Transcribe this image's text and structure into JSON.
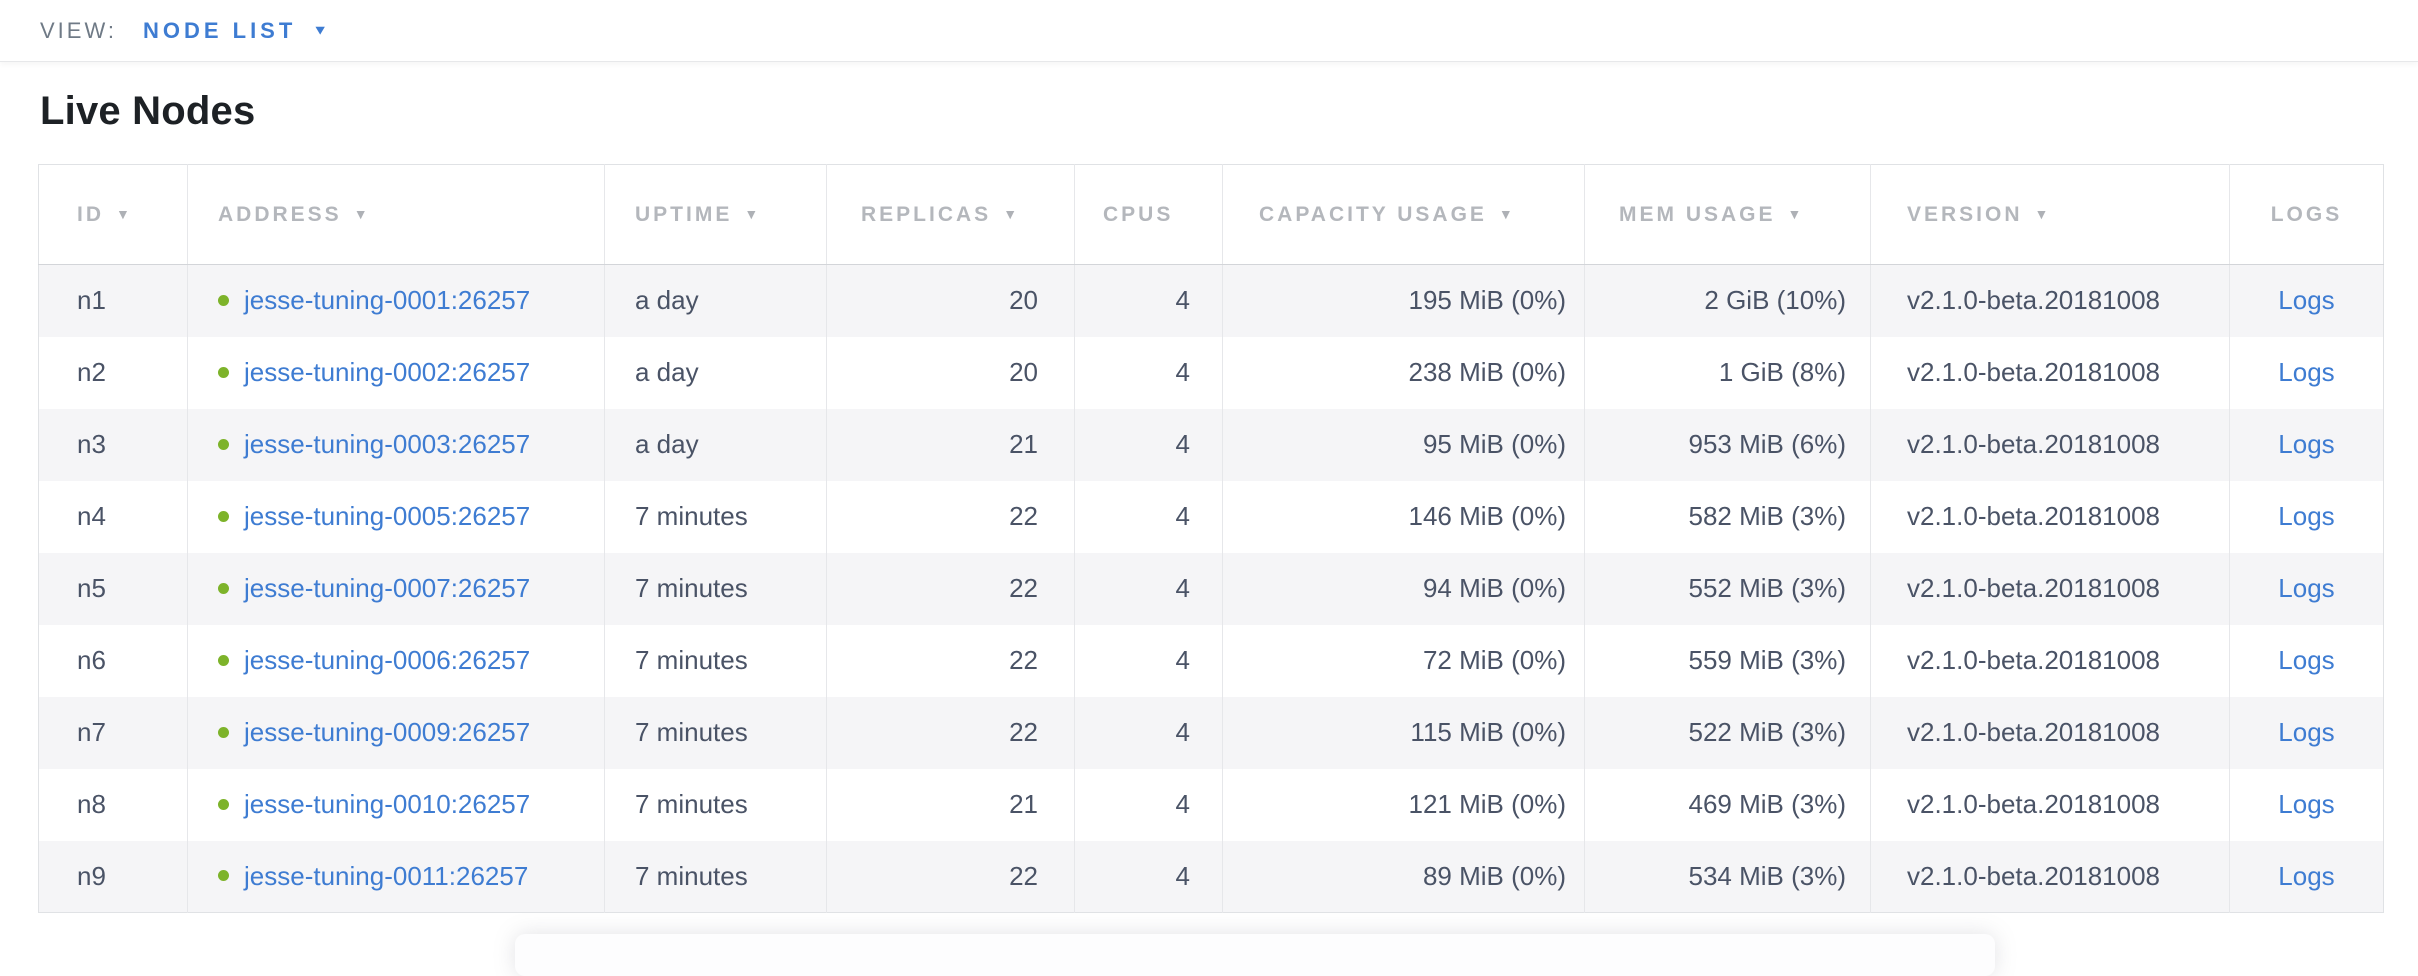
{
  "view_bar": {
    "label": "VIEW:",
    "selected": "NODE LIST"
  },
  "page": {
    "title": "Live Nodes"
  },
  "icons": {
    "sort_desc": "▼",
    "dropdown_caret": "▼",
    "live_dot": "●"
  },
  "colors": {
    "accent_blue": "#3e7cd2",
    "live_green": "#7db32a",
    "header_gray": "#b4b7bc",
    "row_text": "#4a5366",
    "row_alt_bg": "#f5f5f7"
  },
  "table": {
    "columns": [
      {
        "key": "id",
        "label": "ID",
        "sortable": true
      },
      {
        "key": "address",
        "label": "ADDRESS",
        "sortable": true
      },
      {
        "key": "uptime",
        "label": "UPTIME",
        "sortable": true
      },
      {
        "key": "replicas",
        "label": "REPLICAS",
        "sortable": true
      },
      {
        "key": "cpus",
        "label": "CPUS",
        "sortable": false
      },
      {
        "key": "capacity",
        "label": "CAPACITY USAGE",
        "sortable": true
      },
      {
        "key": "mem",
        "label": "MEM USAGE",
        "sortable": true
      },
      {
        "key": "version",
        "label": "VERSION",
        "sortable": true
      },
      {
        "key": "logs",
        "label": "LOGS",
        "sortable": false
      }
    ],
    "rows": [
      {
        "id": "n1",
        "status": "live",
        "address": "jesse-tuning-0001:26257",
        "uptime": "a day",
        "replicas": "20",
        "cpus": "4",
        "capacity": "195 MiB (0%)",
        "mem": "2 GiB (10%)",
        "version": "v2.1.0-beta.20181008",
        "logs": "Logs"
      },
      {
        "id": "n2",
        "status": "live",
        "address": "jesse-tuning-0002:26257",
        "uptime": "a day",
        "replicas": "20",
        "cpus": "4",
        "capacity": "238 MiB (0%)",
        "mem": "1 GiB (8%)",
        "version": "v2.1.0-beta.20181008",
        "logs": "Logs"
      },
      {
        "id": "n3",
        "status": "live",
        "address": "jesse-tuning-0003:26257",
        "uptime": "a day",
        "replicas": "21",
        "cpus": "4",
        "capacity": "95 MiB (0%)",
        "mem": "953 MiB (6%)",
        "version": "v2.1.0-beta.20181008",
        "logs": "Logs"
      },
      {
        "id": "n4",
        "status": "live",
        "address": "jesse-tuning-0005:26257",
        "uptime": "7 minutes",
        "replicas": "22",
        "cpus": "4",
        "capacity": "146 MiB (0%)",
        "mem": "582 MiB (3%)",
        "version": "v2.1.0-beta.20181008",
        "logs": "Logs"
      },
      {
        "id": "n5",
        "status": "live",
        "address": "jesse-tuning-0007:26257",
        "uptime": "7 minutes",
        "replicas": "22",
        "cpus": "4",
        "capacity": "94 MiB (0%)",
        "mem": "552 MiB (3%)",
        "version": "v2.1.0-beta.20181008",
        "logs": "Logs"
      },
      {
        "id": "n6",
        "status": "live",
        "address": "jesse-tuning-0006:26257",
        "uptime": "7 minutes",
        "replicas": "22",
        "cpus": "4",
        "capacity": "72 MiB (0%)",
        "mem": "559 MiB (3%)",
        "version": "v2.1.0-beta.20181008",
        "logs": "Logs"
      },
      {
        "id": "n7",
        "status": "live",
        "address": "jesse-tuning-0009:26257",
        "uptime": "7 minutes",
        "replicas": "22",
        "cpus": "4",
        "capacity": "115 MiB (0%)",
        "mem": "522 MiB (3%)",
        "version": "v2.1.0-beta.20181008",
        "logs": "Logs"
      },
      {
        "id": "n8",
        "status": "live",
        "address": "jesse-tuning-0010:26257",
        "uptime": "7 minutes",
        "replicas": "21",
        "cpus": "4",
        "capacity": "121 MiB (0%)",
        "mem": "469 MiB (3%)",
        "version": "v2.1.0-beta.20181008",
        "logs": "Logs"
      },
      {
        "id": "n9",
        "status": "live",
        "address": "jesse-tuning-0011:26257",
        "uptime": "7 minutes",
        "replicas": "22",
        "cpus": "4",
        "capacity": "89 MiB (0%)",
        "mem": "534 MiB (3%)",
        "version": "v2.1.0-beta.20181008",
        "logs": "Logs"
      }
    ]
  }
}
